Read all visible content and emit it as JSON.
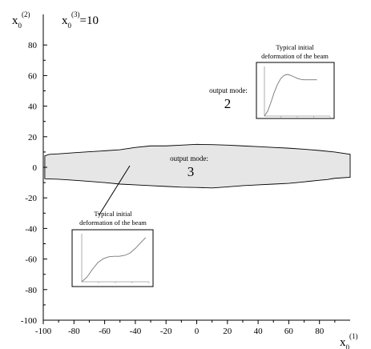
{
  "chart_data": {
    "type": "area",
    "xlabel": {
      "base": "x",
      "sub": "0",
      "sup": "(1)"
    },
    "ylabel": {
      "base": "x",
      "sub": "0",
      "sup": "(2)"
    },
    "condition": {
      "base": "x",
      "sub": "0",
      "sup": "(3)",
      "value": "=10"
    },
    "xlim": [
      -100,
      100
    ],
    "ylim": [
      -100,
      100
    ],
    "xticks": [
      -100,
      -80,
      -60,
      -40,
      -20,
      0,
      20,
      40,
      60,
      80
    ],
    "yticks": [
      -100,
      -80,
      -60,
      -40,
      -20,
      0,
      20,
      40,
      60,
      80
    ],
    "grid": false,
    "fill_color": "#e6e6e6",
    "region": {
      "upper": [
        [
          -99,
          7.5
        ],
        [
          -96,
          8.5
        ],
        [
          -90,
          8.8
        ],
        [
          -80,
          9.5
        ],
        [
          -70,
          10.2
        ],
        [
          -60,
          10.8
        ],
        [
          -50,
          11.5
        ],
        [
          -40,
          13.0
        ],
        [
          -30,
          14.0
        ],
        [
          -20,
          14.0
        ],
        [
          -10,
          14.5
        ],
        [
          0,
          15.0
        ],
        [
          10,
          14.8
        ],
        [
          20,
          14.5
        ],
        [
          30,
          14.0
        ],
        [
          40,
          13.5
        ],
        [
          50,
          13.0
        ],
        [
          60,
          12.5
        ],
        [
          70,
          11.8
        ],
        [
          80,
          11.0
        ],
        [
          90,
          10.0
        ],
        [
          100,
          8.5
        ]
      ],
      "lower": [
        [
          -99,
          -7.5
        ],
        [
          -90,
          -7.8
        ],
        [
          -80,
          -8.5
        ],
        [
          -70,
          -9.2
        ],
        [
          -60,
          -10.0
        ],
        [
          -50,
          -11.0
        ],
        [
          -40,
          -11.5
        ],
        [
          -30,
          -12.0
        ],
        [
          -20,
          -12.5
        ],
        [
          -10,
          -13.0
        ],
        [
          0,
          -13.2
        ],
        [
          10,
          -13.5
        ],
        [
          20,
          -12.8
        ],
        [
          30,
          -12.0
        ],
        [
          40,
          -11.5
        ],
        [
          50,
          -11.0
        ],
        [
          60,
          -10.5
        ],
        [
          70,
          -9.5
        ],
        [
          80,
          -8.5
        ],
        [
          85,
          -8.0
        ],
        [
          90,
          -7.2
        ],
        [
          100,
          -6.5
        ]
      ]
    },
    "annotations": [
      {
        "id": "mode2",
        "label": "output mode:",
        "value": "2"
      },
      {
        "id": "mode3",
        "label": "output mode:",
        "value": "3"
      }
    ],
    "insets": [
      {
        "id": "inset-upper",
        "title_line1": "Typical initial",
        "title_line2": "deformation of the beam",
        "curve": [
          [
            0.0,
            0.0
          ],
          [
            0.05,
            0.1
          ],
          [
            0.1,
            0.28
          ],
          [
            0.15,
            0.48
          ],
          [
            0.2,
            0.64
          ],
          [
            0.25,
            0.76
          ],
          [
            0.3,
            0.82
          ],
          [
            0.35,
            0.84
          ],
          [
            0.4,
            0.82
          ],
          [
            0.45,
            0.79
          ],
          [
            0.5,
            0.76
          ],
          [
            0.55,
            0.74
          ],
          [
            0.6,
            0.73
          ],
          [
            0.7,
            0.73
          ],
          [
            0.8,
            0.73
          ]
        ]
      },
      {
        "id": "inset-lower",
        "title_line1": "Typical initial",
        "title_line2": "deformation of the beam",
        "curve": [
          [
            0.0,
            0.0
          ],
          [
            0.08,
            0.1
          ],
          [
            0.16,
            0.26
          ],
          [
            0.24,
            0.4
          ],
          [
            0.32,
            0.48
          ],
          [
            0.4,
            0.52
          ],
          [
            0.48,
            0.53
          ],
          [
            0.56,
            0.53
          ],
          [
            0.64,
            0.55
          ],
          [
            0.72,
            0.6
          ],
          [
            0.8,
            0.7
          ],
          [
            0.88,
            0.82
          ],
          [
            0.95,
            0.92
          ]
        ]
      }
    ]
  }
}
